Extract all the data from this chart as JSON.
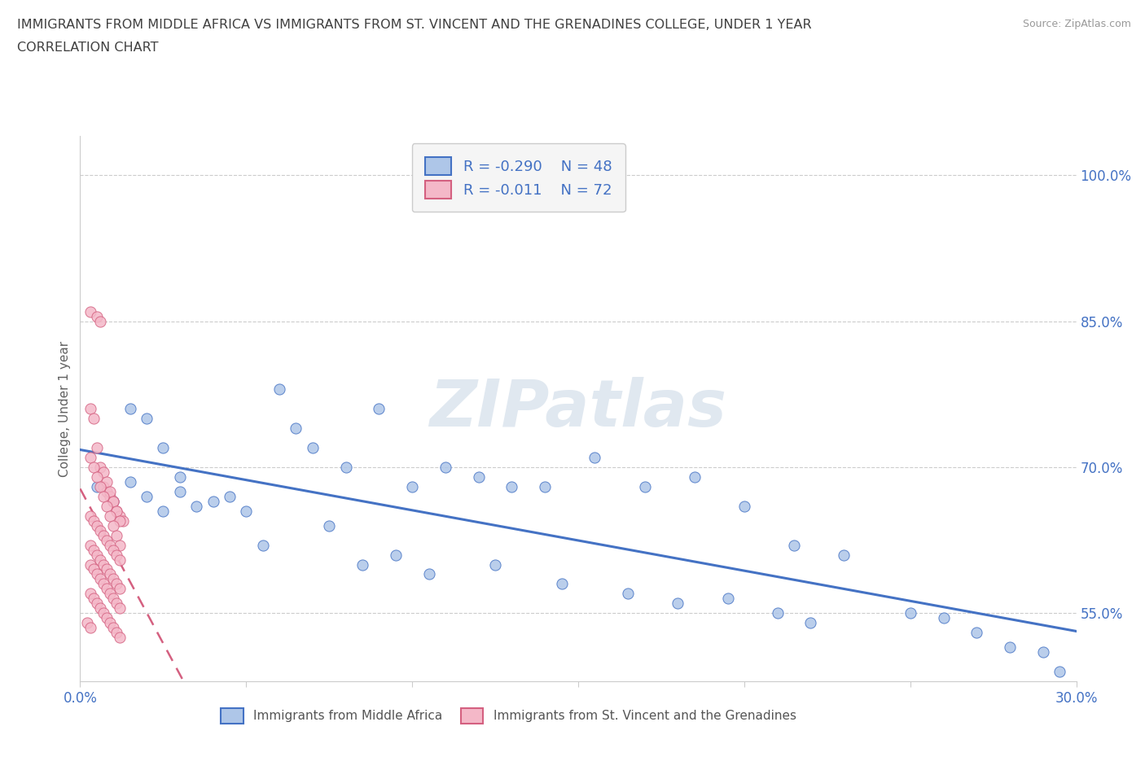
{
  "title_line1": "IMMIGRANTS FROM MIDDLE AFRICA VS IMMIGRANTS FROM ST. VINCENT AND THE GRENADINES COLLEGE, UNDER 1 YEAR",
  "title_line2": "CORRELATION CHART",
  "source_text": "Source: ZipAtlas.com",
  "watermark": "ZIPatlas",
  "ylabel": "College, Under 1 year",
  "xmin": 0.0,
  "xmax": 0.3,
  "ymin": 0.48,
  "ymax": 1.04,
  "right_yticks": [
    0.55,
    0.7,
    0.85,
    1.0
  ],
  "right_yticklabels": [
    "55.0%",
    "70.0%",
    "85.0%",
    "100.0%"
  ],
  "xticks": [
    0.0,
    0.05,
    0.1,
    0.15,
    0.2,
    0.25,
    0.3
  ],
  "xticklabels": [
    "0.0%",
    "",
    "",
    "",
    "",
    "",
    "30.0%"
  ],
  "series1_name": "Immigrants from Middle Africa",
  "series1_color": "#aec6e8",
  "series1_edge_color": "#4472c4",
  "series1_line_color": "#4472c4",
  "series1_R": -0.29,
  "series1_N": 48,
  "series1_x": [
    0.005,
    0.01,
    0.015,
    0.02,
    0.025,
    0.03,
    0.035,
    0.04,
    0.045,
    0.05,
    0.015,
    0.02,
    0.025,
    0.03,
    0.06,
    0.065,
    0.07,
    0.08,
    0.09,
    0.1,
    0.11,
    0.12,
    0.13,
    0.14,
    0.155,
    0.17,
    0.185,
    0.2,
    0.215,
    0.23,
    0.055,
    0.075,
    0.085,
    0.095,
    0.105,
    0.125,
    0.145,
    0.165,
    0.18,
    0.195,
    0.21,
    0.22,
    0.25,
    0.26,
    0.27,
    0.28,
    0.29,
    0.295
  ],
  "series1_y": [
    0.68,
    0.665,
    0.685,
    0.67,
    0.655,
    0.675,
    0.66,
    0.665,
    0.67,
    0.655,
    0.76,
    0.75,
    0.72,
    0.69,
    0.78,
    0.74,
    0.72,
    0.7,
    0.76,
    0.68,
    0.7,
    0.69,
    0.68,
    0.68,
    0.71,
    0.68,
    0.69,
    0.66,
    0.62,
    0.61,
    0.62,
    0.64,
    0.6,
    0.61,
    0.59,
    0.6,
    0.58,
    0.57,
    0.56,
    0.565,
    0.55,
    0.54,
    0.55,
    0.545,
    0.53,
    0.515,
    0.51,
    0.49
  ],
  "series2_name": "Immigrants from St. Vincent and the Grenadines",
  "series2_color": "#f4b8c8",
  "series2_edge_color": "#d46080",
  "series2_line_color": "#d46080",
  "series2_R": -0.011,
  "series2_N": 72,
  "series2_x": [
    0.003,
    0.005,
    0.006,
    0.007,
    0.008,
    0.009,
    0.01,
    0.011,
    0.012,
    0.013,
    0.003,
    0.004,
    0.005,
    0.006,
    0.007,
    0.008,
    0.009,
    0.01,
    0.011,
    0.012,
    0.003,
    0.004,
    0.005,
    0.006,
    0.007,
    0.008,
    0.009,
    0.01,
    0.011,
    0.012,
    0.003,
    0.004,
    0.005,
    0.006,
    0.007,
    0.008,
    0.009,
    0.01,
    0.011,
    0.012,
    0.003,
    0.004,
    0.005,
    0.006,
    0.007,
    0.008,
    0.009,
    0.01,
    0.011,
    0.012,
    0.003,
    0.004,
    0.005,
    0.006,
    0.007,
    0.008,
    0.009,
    0.01,
    0.011,
    0.012,
    0.003,
    0.004,
    0.005,
    0.006,
    0.007,
    0.008,
    0.009,
    0.01,
    0.011,
    0.012,
    0.002,
    0.003
  ],
  "series2_y": [
    0.86,
    0.855,
    0.85,
    0.68,
    0.675,
    0.67,
    0.665,
    0.655,
    0.65,
    0.645,
    0.76,
    0.75,
    0.72,
    0.7,
    0.695,
    0.685,
    0.675,
    0.665,
    0.655,
    0.645,
    0.71,
    0.7,
    0.69,
    0.68,
    0.67,
    0.66,
    0.65,
    0.64,
    0.63,
    0.62,
    0.65,
    0.645,
    0.64,
    0.635,
    0.63,
    0.625,
    0.62,
    0.615,
    0.61,
    0.605,
    0.62,
    0.615,
    0.61,
    0.605,
    0.6,
    0.595,
    0.59,
    0.585,
    0.58,
    0.575,
    0.6,
    0.595,
    0.59,
    0.585,
    0.58,
    0.575,
    0.57,
    0.565,
    0.56,
    0.555,
    0.57,
    0.565,
    0.56,
    0.555,
    0.55,
    0.545,
    0.54,
    0.535,
    0.53,
    0.525,
    0.54,
    0.535
  ],
  "grid_color": "#cccccc",
  "background_color": "#ffffff",
  "title_color": "#404040",
  "axis_color": "#4472c4"
}
